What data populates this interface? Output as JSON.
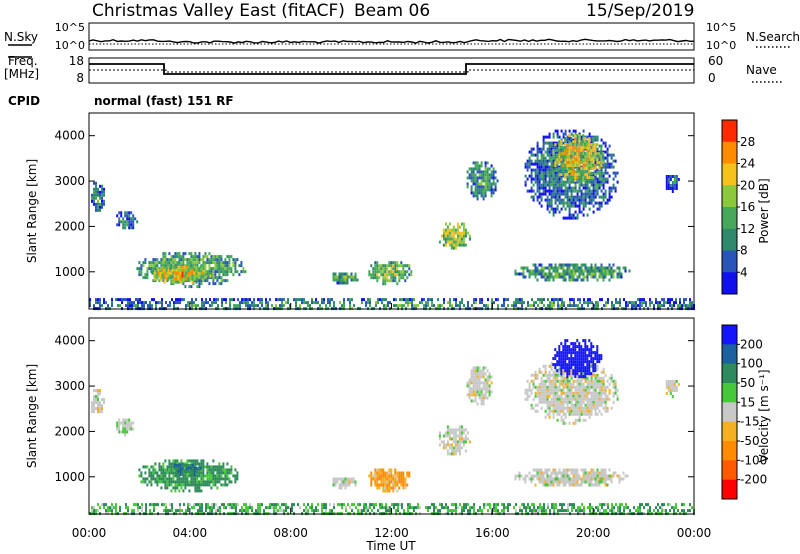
{
  "header": {
    "title": "Christmas Valley East (fitACF)",
    "beam": "Beam 06",
    "date": "15/Sep/2019"
  },
  "top_panel": {
    "nsky_label": "N.Sky",
    "nsearch_label": "N.Search",
    "noise_ticks_left": [
      "10^5",
      "10^0"
    ],
    "noise_ticks_right": [
      "10^5",
      "10^0"
    ],
    "freq_label_1": "Freq.",
    "freq_label_2": "[MHz]",
    "freq_ticks": [
      "18",
      "8"
    ],
    "nave_label": "Nave",
    "nave_ticks": [
      "60",
      "0"
    ],
    "cpid_label": "CPID",
    "cpid_value": "normal (fast) 151 RF"
  },
  "colors": {
    "power_scale": [
      "#1010ee",
      "#2a55b8",
      "#2e8a6a",
      "#45a85a",
      "#8cc83c",
      "#f4c21a",
      "#ff8c00",
      "#ff2a00"
    ],
    "velocity_scale": [
      "#1414ff",
      "#1d60a0",
      "#2e8a5a",
      "#46c83a",
      "#c8c8c8",
      "#f4b020",
      "#ff8c00",
      "#ff5a00",
      "#ff0000"
    ],
    "ground_scatter": "#bebebe"
  },
  "chart_data": [
    {
      "type": "heatmap",
      "name": "power",
      "ylabel": "Slant Range [km]",
      "yticks": [
        "1000",
        "2000",
        "3000",
        "4000"
      ],
      "ylim": [
        180,
        4500
      ],
      "xlim": [
        0,
        24
      ],
      "colorbar_label": "Power [dB]",
      "colorbar_ticks": [
        "4",
        "8",
        "12",
        "16",
        "20",
        "24",
        "28"
      ],
      "clim": [
        0,
        30
      ],
      "regions": [
        {
          "t0": 0.0,
          "t1": 0.6,
          "r0": 2350,
          "r1": 3050,
          "level": 10
        },
        {
          "t0": 1.0,
          "t1": 1.9,
          "r0": 1950,
          "r1": 2400,
          "level": 9
        },
        {
          "t0": 1.8,
          "t1": 6.2,
          "r0": 700,
          "r1": 1500,
          "level": 14
        },
        {
          "t0": 2.4,
          "t1": 4.8,
          "r0": 750,
          "r1": 1200,
          "level": 21
        },
        {
          "t0": 9.5,
          "t1": 10.7,
          "r0": 760,
          "r1": 1050,
          "level": 13
        },
        {
          "t0": 11.0,
          "t1": 12.8,
          "r0": 750,
          "r1": 1300,
          "level": 15
        },
        {
          "t0": 13.8,
          "t1": 15.1,
          "r0": 1500,
          "r1": 2150,
          "level": 17
        },
        {
          "t0": 14.9,
          "t1": 16.2,
          "r0": 2600,
          "r1": 3500,
          "level": 11
        },
        {
          "t0": 16.8,
          "t1": 21.5,
          "r0": 800,
          "r1": 1250,
          "level": 13
        },
        {
          "t0": 17.2,
          "t1": 21.0,
          "r0": 2200,
          "r1": 4200,
          "level": 9
        },
        {
          "t0": 18.3,
          "t1": 20.4,
          "r0": 3000,
          "r1": 4100,
          "level": 20
        },
        {
          "t0": 22.8,
          "t1": 23.4,
          "r0": 2800,
          "r1": 3200,
          "level": 8
        },
        {
          "t0": 0.0,
          "t1": 24.0,
          "r0": 180,
          "r1": 420,
          "level": 12
        }
      ]
    },
    {
      "type": "heatmap",
      "name": "velocity",
      "ylabel": "Slant Range [km]",
      "yticks": [
        "1000",
        "2000",
        "3000",
        "4000"
      ],
      "ylim": [
        180,
        4500
      ],
      "xlim": [
        0,
        24
      ],
      "xticks": [
        "00:00",
        "04:00",
        "08:00",
        "12:00",
        "16:00",
        "20:00",
        "00:00"
      ],
      "xlabel": "Time UT",
      "colorbar_label": "Velocity [m s⁻¹]",
      "colorbar_ticks": [
        "200",
        "100",
        "50",
        "15",
        "-15",
        "-50",
        "-100",
        "-200"
      ],
      "clim": [
        -250,
        250
      ],
      "regions": [
        {
          "t0": 0.0,
          "t1": 0.6,
          "r0": 2350,
          "r1": 3000,
          "level": 0
        },
        {
          "t0": 1.0,
          "t1": 1.8,
          "r0": 1950,
          "r1": 2350,
          "level": 10
        },
        {
          "t0": 1.8,
          "t1": 6.0,
          "r0": 700,
          "r1": 1450,
          "level": 40
        },
        {
          "t0": 3.2,
          "t1": 4.4,
          "r0": 1050,
          "r1": 1350,
          "level": 70
        },
        {
          "t0": 9.5,
          "t1": 10.6,
          "r0": 780,
          "r1": 1050,
          "level": 0
        },
        {
          "t0": 11.0,
          "t1": 12.8,
          "r0": 700,
          "r1": 1250,
          "level": -30
        },
        {
          "t0": 13.8,
          "t1": 15.1,
          "r0": 1500,
          "r1": 2200,
          "level": 0
        },
        {
          "t0": 14.9,
          "t1": 16.0,
          "r0": 2600,
          "r1": 3500,
          "level": 0
        },
        {
          "t0": 16.8,
          "t1": 21.4,
          "r0": 800,
          "r1": 1250,
          "level": 0
        },
        {
          "t0": 17.2,
          "t1": 21.0,
          "r0": 2200,
          "r1": 3600,
          "level": 0
        },
        {
          "t0": 18.3,
          "t1": 20.3,
          "r0": 3200,
          "r1": 4100,
          "level": 230
        },
        {
          "t0": 22.8,
          "t1": 23.4,
          "r0": 2800,
          "r1": 3200,
          "level": 0
        },
        {
          "t0": 0.0,
          "t1": 24.0,
          "r0": 180,
          "r1": 420,
          "level": 30
        }
      ]
    }
  ]
}
